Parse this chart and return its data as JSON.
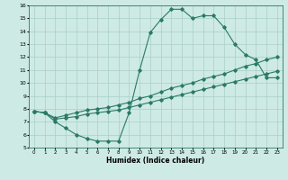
{
  "title": "",
  "xlabel": "Humidex (Indice chaleur)",
  "ylabel": "",
  "xlim": [
    -0.5,
    23.5
  ],
  "ylim": [
    5,
    16
  ],
  "xticks": [
    0,
    1,
    2,
    3,
    4,
    5,
    6,
    7,
    8,
    9,
    10,
    11,
    12,
    13,
    14,
    15,
    16,
    17,
    18,
    19,
    20,
    21,
    22,
    23
  ],
  "yticks": [
    5,
    6,
    7,
    8,
    9,
    10,
    11,
    12,
    13,
    14,
    15,
    16
  ],
  "line_color": "#2a7a65",
  "bg_color": "#ceeae4",
  "grid_color": "#aacfc8",
  "line1_x": [
    0,
    1,
    2,
    3,
    4,
    5,
    6,
    7,
    8,
    9,
    10,
    11,
    12,
    13,
    14,
    15,
    16,
    17,
    18,
    19,
    20,
    21,
    22,
    23
  ],
  "line1_y": [
    7.8,
    7.7,
    7.0,
    6.5,
    6.0,
    5.7,
    5.5,
    5.5,
    5.5,
    7.7,
    11.0,
    13.9,
    14.9,
    15.7,
    15.7,
    15.0,
    15.2,
    15.2,
    14.3,
    13.0,
    12.2,
    11.8,
    10.4,
    10.4
  ],
  "line2_x": [
    0,
    1,
    2,
    3,
    4,
    5,
    6,
    7,
    8,
    9,
    10,
    11,
    12,
    13,
    14,
    15,
    16,
    17,
    18,
    19,
    20,
    21,
    22,
    23
  ],
  "line2_y": [
    7.8,
    7.7,
    7.3,
    7.5,
    7.7,
    7.9,
    8.0,
    8.1,
    8.3,
    8.5,
    8.8,
    9.0,
    9.3,
    9.6,
    9.8,
    10.0,
    10.3,
    10.5,
    10.7,
    11.0,
    11.3,
    11.5,
    11.8,
    12.0
  ],
  "line3_x": [
    0,
    1,
    2,
    3,
    4,
    5,
    6,
    7,
    8,
    9,
    10,
    11,
    12,
    13,
    14,
    15,
    16,
    17,
    18,
    19,
    20,
    21,
    22,
    23
  ],
  "line3_y": [
    7.8,
    7.7,
    7.2,
    7.3,
    7.4,
    7.6,
    7.7,
    7.8,
    7.9,
    8.1,
    8.3,
    8.5,
    8.7,
    8.9,
    9.1,
    9.3,
    9.5,
    9.7,
    9.9,
    10.1,
    10.3,
    10.5,
    10.7,
    10.9
  ]
}
